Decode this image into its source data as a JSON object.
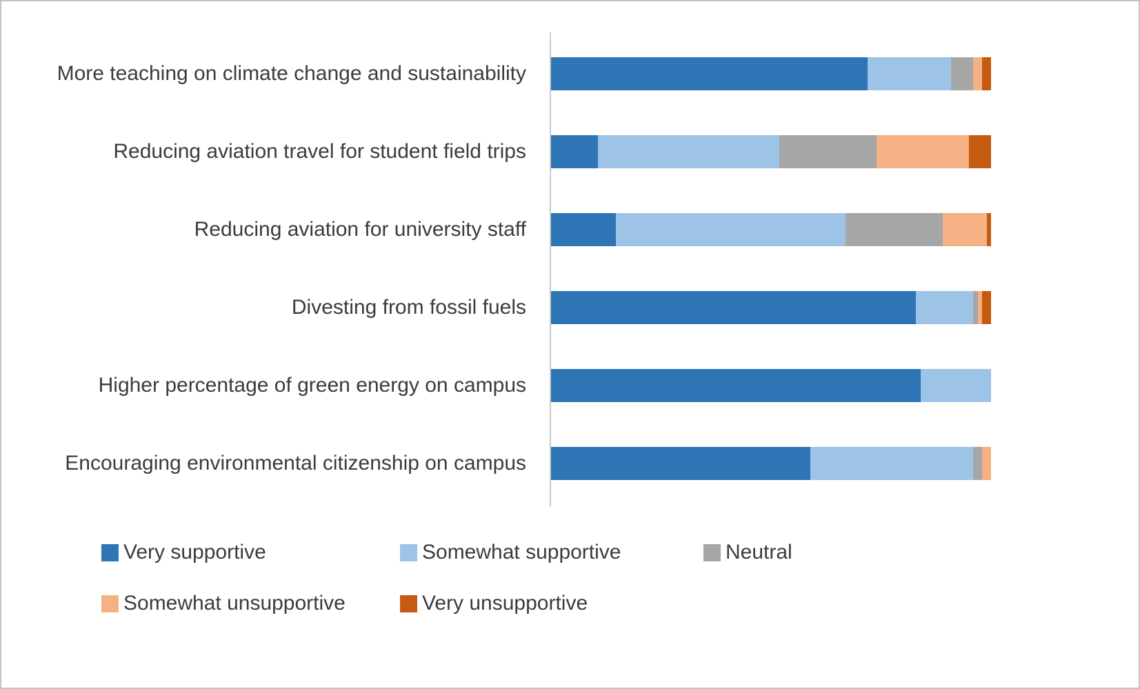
{
  "chart_data": {
    "type": "bar",
    "orientation": "horizontal",
    "stacked": true,
    "title": "",
    "xlabel": "",
    "ylabel": "",
    "xlim": [
      0,
      100
    ],
    "grid": false,
    "legend_position": "bottom",
    "categories": [
      "More teaching on climate change and sustainability",
      "Reducing aviation travel for student field trips",
      "Reducing aviation for university staff",
      "Divesting from fossil fuels",
      "Higher percentage of green energy on campus",
      "Encouraging environmental citizenship on campus"
    ],
    "series": [
      {
        "name": "Very supportive",
        "color": "#2E75B6",
        "values": [
          72,
          11,
          15,
          83,
          84,
          59
        ]
      },
      {
        "name": "Somewhat supportive",
        "color": "#9DC3E6",
        "values": [
          19,
          41,
          52,
          13,
          16,
          37
        ]
      },
      {
        "name": "Neutral",
        "color": "#A6A6A6",
        "values": [
          5,
          22,
          22,
          1,
          0,
          2
        ]
      },
      {
        "name": "Somewhat unsupportive",
        "color": "#F4B183",
        "values": [
          2,
          21,
          10,
          1,
          0,
          2
        ]
      },
      {
        "name": "Very unsupportive",
        "color": "#C55A11",
        "values": [
          2,
          5,
          1,
          2,
          0,
          0
        ]
      }
    ],
    "legend_rows": [
      [
        "Very supportive",
        "Somewhat supportive",
        "Neutral"
      ],
      [
        "Somewhat unsupportive",
        "Very unsupportive"
      ]
    ],
    "colors": {
      "very_supportive": "#2E75B6",
      "somewhat_supportive": "#9DC3E6",
      "neutral": "#A6A6A6",
      "somewhat_unsupportive": "#F4B183",
      "very_unsupportive": "#C55A11"
    }
  }
}
